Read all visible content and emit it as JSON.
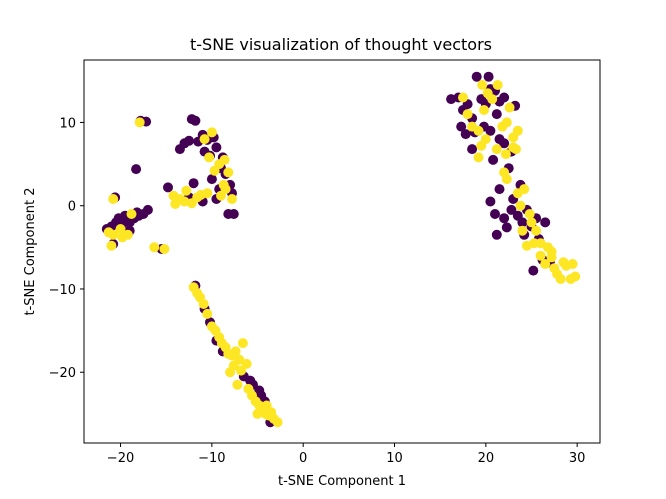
{
  "chart_data": {
    "type": "scatter",
    "title": "t-SNE visualization of thought vectors",
    "xlabel": "t-SNE Component 1",
    "ylabel": "t-SNE Component 2",
    "xlim": [
      -24,
      32.5
    ],
    "ylim": [
      -28.5,
      17.5
    ],
    "xticks": [
      -20,
      -10,
      0,
      10,
      20,
      30
    ],
    "yticks": [
      -20,
      -10,
      0,
      10
    ],
    "grid": false,
    "legend": "none",
    "colors": {
      "class_0": "#440154",
      "class_1": "#fde725"
    },
    "series": [
      {
        "color_key": "class_0",
        "points": [
          [
            -21.0,
            -2.5
          ],
          [
            -20.5,
            -2.0
          ],
          [
            -20.8,
            -4.6
          ],
          [
            -21.5,
            -2.8
          ],
          [
            -20.2,
            -1.5
          ],
          [
            -19.8,
            -2.2
          ],
          [
            -19.5,
            -1.2
          ],
          [
            -19.0,
            -2.0
          ],
          [
            -18.5,
            -1.5
          ],
          [
            -18.0,
            -1.2
          ],
          [
            -17.5,
            -1.0
          ],
          [
            -17.0,
            -0.5
          ],
          [
            -18.2,
            -0.8
          ],
          [
            -20.6,
            1.0
          ],
          [
            -19.0,
            -3.0
          ],
          [
            -17.8,
            10.2
          ],
          [
            -17.2,
            10.1
          ],
          [
            -18.3,
            4.4
          ],
          [
            -15.5,
            -5.2
          ],
          [
            -14.8,
            2.2
          ],
          [
            -13.5,
            6.8
          ],
          [
            -13.0,
            7.5
          ],
          [
            -12.5,
            7.8
          ],
          [
            -12.2,
            10.4
          ],
          [
            -11.8,
            10.2
          ],
          [
            -11.5,
            7.7
          ],
          [
            -11.0,
            8.5
          ],
          [
            -10.5,
            7.9
          ],
          [
            -10.8,
            6.5
          ],
          [
            -10.2,
            6.0
          ],
          [
            -9.8,
            8.2
          ],
          [
            -9.5,
            7.0
          ],
          [
            -10.0,
            3.2
          ],
          [
            -9.0,
            4.5
          ],
          [
            -8.5,
            3.8
          ],
          [
            -8.0,
            2.5
          ],
          [
            -7.8,
            1.5
          ],
          [
            -8.2,
            -1.0
          ],
          [
            -7.6,
            -1.0
          ],
          [
            -9.5,
            0.8
          ],
          [
            -12.0,
            2.7
          ],
          [
            -12.5,
            1.0
          ],
          [
            -11.0,
            0.5
          ],
          [
            -8.8,
            5.8
          ],
          [
            -9.2,
            2.0
          ],
          [
            -11.8,
            -9.6
          ],
          [
            -10.8,
            -12.4
          ],
          [
            -10.2,
            -14.0
          ],
          [
            -9.5,
            -16.2
          ],
          [
            -8.8,
            -17.5
          ],
          [
            -6.5,
            -20.5
          ],
          [
            -5.8,
            -21.0
          ],
          [
            -4.8,
            -22.2
          ],
          [
            -4.2,
            -23.5
          ],
          [
            -3.6,
            -26.0
          ],
          [
            -5.5,
            -21.5
          ],
          [
            -4.6,
            -22.8
          ],
          [
            16.2,
            12.8
          ],
          [
            17.0,
            13.0
          ],
          [
            17.5,
            11.5
          ],
          [
            18.0,
            12.2
          ],
          [
            18.5,
            10.5
          ],
          [
            19.0,
            15.5
          ],
          [
            19.5,
            12.8
          ],
          [
            20.0,
            12.2
          ],
          [
            20.5,
            14.0
          ],
          [
            20.3,
            15.5
          ],
          [
            21.0,
            13.8
          ],
          [
            21.5,
            12.5
          ],
          [
            21.2,
            11.0
          ],
          [
            18.8,
            8.8
          ],
          [
            19.8,
            9.5
          ],
          [
            20.5,
            9.0
          ],
          [
            21.5,
            8.0
          ],
          [
            22.0,
            7.5
          ],
          [
            22.8,
            6.5
          ],
          [
            18.5,
            6.8
          ],
          [
            20.8,
            5.5
          ],
          [
            17.3,
            9.5
          ],
          [
            22.0,
            13.0
          ],
          [
            23.2,
            12.0
          ],
          [
            17.8,
            8.6
          ],
          [
            22.5,
            4.5
          ],
          [
            23.8,
            2.5
          ],
          [
            21.5,
            2.0
          ],
          [
            22.8,
            -0.5
          ],
          [
            20.5,
            0.5
          ],
          [
            21.0,
            -1.0
          ],
          [
            22.0,
            -1.5
          ],
          [
            21.2,
            -3.5
          ],
          [
            23.5,
            -1.2
          ],
          [
            24.5,
            -0.5
          ],
          [
            24.0,
            -2.0
          ],
          [
            25.0,
            -2.5
          ],
          [
            25.5,
            -1.5
          ],
          [
            26.5,
            -2.0
          ],
          [
            25.8,
            -4.0
          ],
          [
            26.2,
            -6.5
          ],
          [
            24.2,
            -3.5
          ],
          [
            25.2,
            -7.8
          ],
          [
            27.0,
            -6.8
          ],
          [
            22.3,
            -2.6
          ],
          [
            23.0,
            0.8
          ]
        ]
      },
      {
        "color_key": "class_1",
        "points": [
          [
            -21.3,
            -3.2
          ],
          [
            -20.8,
            -3.5
          ],
          [
            -20.0,
            -2.8
          ],
          [
            -21.0,
            -4.8
          ],
          [
            -20.8,
            0.8
          ],
          [
            -19.8,
            -3.8
          ],
          [
            -19.2,
            -3.5
          ],
          [
            -18.8,
            -1.0
          ],
          [
            -17.9,
            10.0
          ],
          [
            -16.3,
            -5.0
          ],
          [
            -15.2,
            -5.2
          ],
          [
            -14.2,
            1.2
          ],
          [
            -14.0,
            0.2
          ],
          [
            -13.5,
            0.8
          ],
          [
            -13.0,
            0.5
          ],
          [
            -12.8,
            1.8
          ],
          [
            -12.2,
            0.3
          ],
          [
            -11.6,
            1.0
          ],
          [
            -11.2,
            1.3
          ],
          [
            -10.5,
            1.5
          ],
          [
            -10.8,
            8.0
          ],
          [
            -10.0,
            8.8
          ],
          [
            -10.3,
            5.8
          ],
          [
            -9.7,
            4.2
          ],
          [
            -9.2,
            5.0
          ],
          [
            -8.6,
            5.5
          ],
          [
            -8.2,
            4.0
          ],
          [
            -8.7,
            2.5
          ],
          [
            -9.0,
            1.2
          ],
          [
            -7.8,
            0.8
          ],
          [
            -8.5,
            2.0
          ],
          [
            -12.0,
            -9.8
          ],
          [
            -11.6,
            -10.5
          ],
          [
            -11.3,
            -11.0
          ],
          [
            -10.9,
            -11.8
          ],
          [
            -10.5,
            -13.0
          ],
          [
            -10.0,
            -14.5
          ],
          [
            -9.6,
            -15.0
          ],
          [
            -9.2,
            -15.8
          ],
          [
            -8.9,
            -16.5
          ],
          [
            -8.5,
            -17.0
          ],
          [
            -8.2,
            -17.8
          ],
          [
            -7.8,
            -18.0
          ],
          [
            -7.4,
            -17.5
          ],
          [
            -7.0,
            -18.5
          ],
          [
            -7.6,
            -19.2
          ],
          [
            -8.0,
            -20.0
          ],
          [
            -6.8,
            -19.8
          ],
          [
            -6.2,
            -19.0
          ],
          [
            -7.2,
            -21.5
          ],
          [
            -6.0,
            -22.0
          ],
          [
            -5.6,
            -22.8
          ],
          [
            -5.2,
            -23.5
          ],
          [
            -4.8,
            -24.0
          ],
          [
            -4.5,
            -24.5
          ],
          [
            -4.1,
            -25.0
          ],
          [
            -3.8,
            -25.2
          ],
          [
            -3.2,
            -25.6
          ],
          [
            -2.8,
            -26.0
          ],
          [
            -4.0,
            -24.0
          ],
          [
            -6.6,
            -16.5
          ],
          [
            -3.5,
            -24.8
          ],
          [
            -5.0,
            -25.0
          ],
          [
            17.5,
            13.0
          ],
          [
            18.0,
            11.0
          ],
          [
            18.5,
            9.5
          ],
          [
            19.2,
            9.0
          ],
          [
            19.6,
            14.5
          ],
          [
            19.8,
            11.5
          ],
          [
            20.2,
            13.5
          ],
          [
            20.7,
            12.8
          ],
          [
            21.3,
            14.5
          ],
          [
            20.0,
            8.0
          ],
          [
            21.8,
            9.5
          ],
          [
            22.3,
            10.0
          ],
          [
            22.6,
            11.8
          ],
          [
            23.5,
            9.0
          ],
          [
            23.0,
            8.2
          ],
          [
            19.5,
            7.2
          ],
          [
            21.2,
            6.8
          ],
          [
            22.2,
            6.2
          ],
          [
            23.3,
            6.8
          ],
          [
            23.0,
            7.0
          ],
          [
            19.2,
            5.8
          ],
          [
            22.0,
            4.0
          ],
          [
            22.3,
            3.2
          ],
          [
            23.5,
            1.5
          ],
          [
            24.2,
            2.0
          ],
          [
            23.8,
            0.0
          ],
          [
            24.8,
            -1.0
          ],
          [
            25.5,
            -3.0
          ],
          [
            25.3,
            -4.5
          ],
          [
            24.5,
            -4.8
          ],
          [
            26.0,
            -4.5
          ],
          [
            26.8,
            -5.0
          ],
          [
            27.2,
            -5.5
          ],
          [
            26.0,
            -6.0
          ],
          [
            27.5,
            -7.5
          ],
          [
            27.8,
            -8.2
          ],
          [
            28.2,
            -8.8
          ],
          [
            28.8,
            -7.2
          ],
          [
            29.5,
            -7.0
          ],
          [
            29.8,
            -8.5
          ],
          [
            29.3,
            -8.8
          ],
          [
            28.5,
            -6.8
          ],
          [
            24.0,
            -3.0
          ],
          [
            26.5,
            -7.0
          ],
          [
            27.2,
            -6.2
          ],
          [
            25.0,
            -2.0
          ]
        ]
      }
    ]
  }
}
